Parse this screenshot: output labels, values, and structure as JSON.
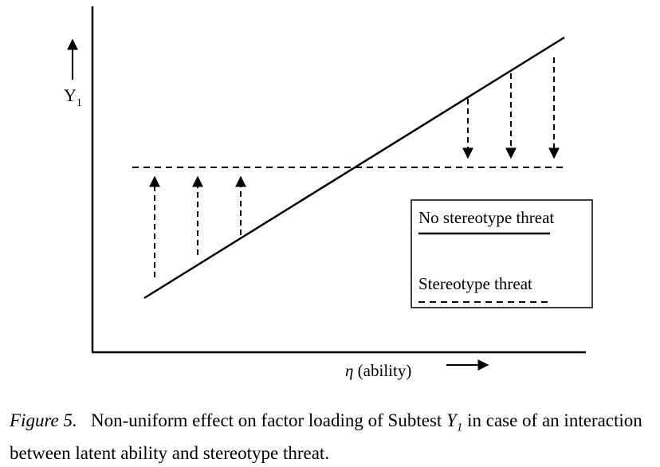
{
  "y_axis": {
    "label": "Y",
    "subscript": "1"
  },
  "x_axis": {
    "symbol": "η",
    "label": "(ability)"
  },
  "legend": {
    "items": [
      {
        "label": "No stereotype threat",
        "style": "solid"
      },
      {
        "label": "Stereotype threat",
        "style": "dashed"
      }
    ]
  },
  "lines": [
    {
      "name": "No stereotype threat",
      "style": "solid",
      "shape": "rising",
      "crosses_dashed_at": "middle"
    },
    {
      "name": "Stereotype threat",
      "style": "dashed",
      "shape": "flat"
    }
  ],
  "effect_arrows": {
    "left": {
      "count": 3,
      "direction": "up"
    },
    "right": {
      "count": 3,
      "direction": "down"
    }
  },
  "caption": {
    "figure_label": "Figure 5.",
    "text_before": "Non-uniform effect on factor loading of Subtest",
    "variable": "Y",
    "subscript": "1",
    "text_after": "in case of an interaction between latent ability and stereotype threat."
  }
}
